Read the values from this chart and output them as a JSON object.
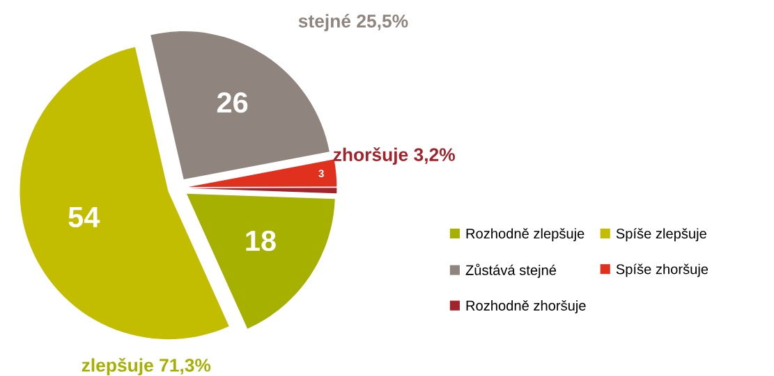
{
  "chart_data": {
    "type": "pie",
    "categories": [
      "Rozhodně zlepšuje",
      "Spíše zlepšuje",
      "Zůstává stejné",
      "Spíše zhoršuje",
      "Rozhodně zhoršuje"
    ],
    "values": [
      18,
      54,
      26,
      3,
      0.6
    ],
    "value_labels": [
      "18",
      "54",
      "26",
      "3",
      null
    ],
    "colors": [
      "#a5b000",
      "#c3bd00",
      "#8f857e",
      "#e0301e",
      "#a0242b"
    ],
    "annotations": [
      "stejné 25,5%",
      "zhoršuje 3,2%",
      "zlepšuje 71,3%"
    ],
    "legend": "right"
  }
}
